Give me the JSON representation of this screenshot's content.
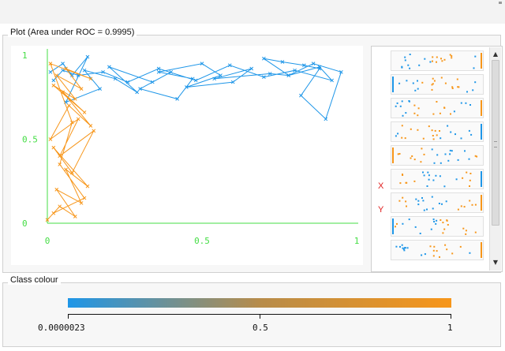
{
  "plot_panel": {
    "title": "Plot (Area under ROC = 0.9995)"
  },
  "chart_data": {
    "type": "line",
    "title": "",
    "xlabel": "",
    "ylabel": "",
    "xlim": [
      0,
      1
    ],
    "ylim": [
      0,
      1
    ],
    "x_ticks": [
      "0",
      "0.5",
      "1"
    ],
    "y_ticks": [
      "0",
      "0.5",
      "1"
    ],
    "grid": false,
    "colors": {
      "high": "#1e96e8",
      "low": "#f7961a",
      "axis": "#44dd44"
    },
    "series": [
      {
        "color": "#1e96e8",
        "x": [
          0.01,
          0.05,
          0.08,
          0.13,
          0.06,
          0.17,
          0.12,
          0.22,
          0.29,
          0.2,
          0.34,
          0.4,
          0.3,
          0.42,
          0.47,
          0.36,
          0.5,
          0.56,
          0.45,
          0.6,
          0.66,
          0.54,
          0.72,
          0.78,
          0.7,
          0.76,
          0.83,
          0.88,
          0.82,
          0.9,
          0.95,
          0.86,
          0.78,
          0.88,
          0.92,
          0.8,
          0.7,
          0.59,
          0.48,
          0.36,
          0.26,
          0.18,
          0.1,
          0.05,
          0.02
        ],
        "y": [
          0.9,
          0.95,
          0.88,
          0.99,
          0.72,
          0.8,
          0.91,
          0.86,
          0.78,
          0.93,
          0.84,
          0.9,
          0.8,
          0.74,
          0.86,
          0.9,
          0.95,
          0.88,
          0.81,
          0.84,
          0.92,
          0.86,
          0.89,
          0.88,
          0.98,
          0.96,
          0.94,
          0.92,
          0.76,
          0.62,
          0.9,
          0.95,
          0.88,
          0.93,
          0.85,
          0.91,
          0.87,
          0.94,
          0.85,
          0.92,
          0.84,
          0.9,
          0.88,
          0.91,
          0.85
        ]
      },
      {
        "color": "#f7961a",
        "x": [
          0.0,
          0.04,
          0.09,
          0.03,
          0.11,
          0.06,
          0.13,
          0.02,
          0.08,
          0.15,
          0.04,
          0.1,
          0.01,
          0.07,
          0.14,
          0.05,
          0.12,
          0.02,
          0.09,
          0.03,
          0.11,
          0.06,
          0.14,
          0.01,
          0.08,
          0.04,
          0.12,
          0.02
        ],
        "y": [
          0.02,
          0.1,
          0.04,
          0.2,
          0.12,
          0.32,
          0.22,
          0.45,
          0.3,
          0.55,
          0.4,
          0.62,
          0.5,
          0.7,
          0.58,
          0.78,
          0.66,
          0.82,
          0.74,
          0.88,
          0.8,
          0.92,
          0.86,
          0.95,
          0.6,
          0.35,
          0.15,
          0.06
        ]
      }
    ]
  },
  "attributes": {
    "x_label": "X",
    "y_label": "Y"
  },
  "class_colour": {
    "title": "Class colour",
    "min_label": "0.0000023",
    "mid_label": "0.5",
    "max_label": "1",
    "gradient": {
      "start": "#1e96e8",
      "mid": "#b78c4a",
      "end": "#f7961a"
    }
  },
  "icons": {
    "scroll_up": "scroll-up-icon",
    "scroll_down": "scroll-down-icon"
  }
}
